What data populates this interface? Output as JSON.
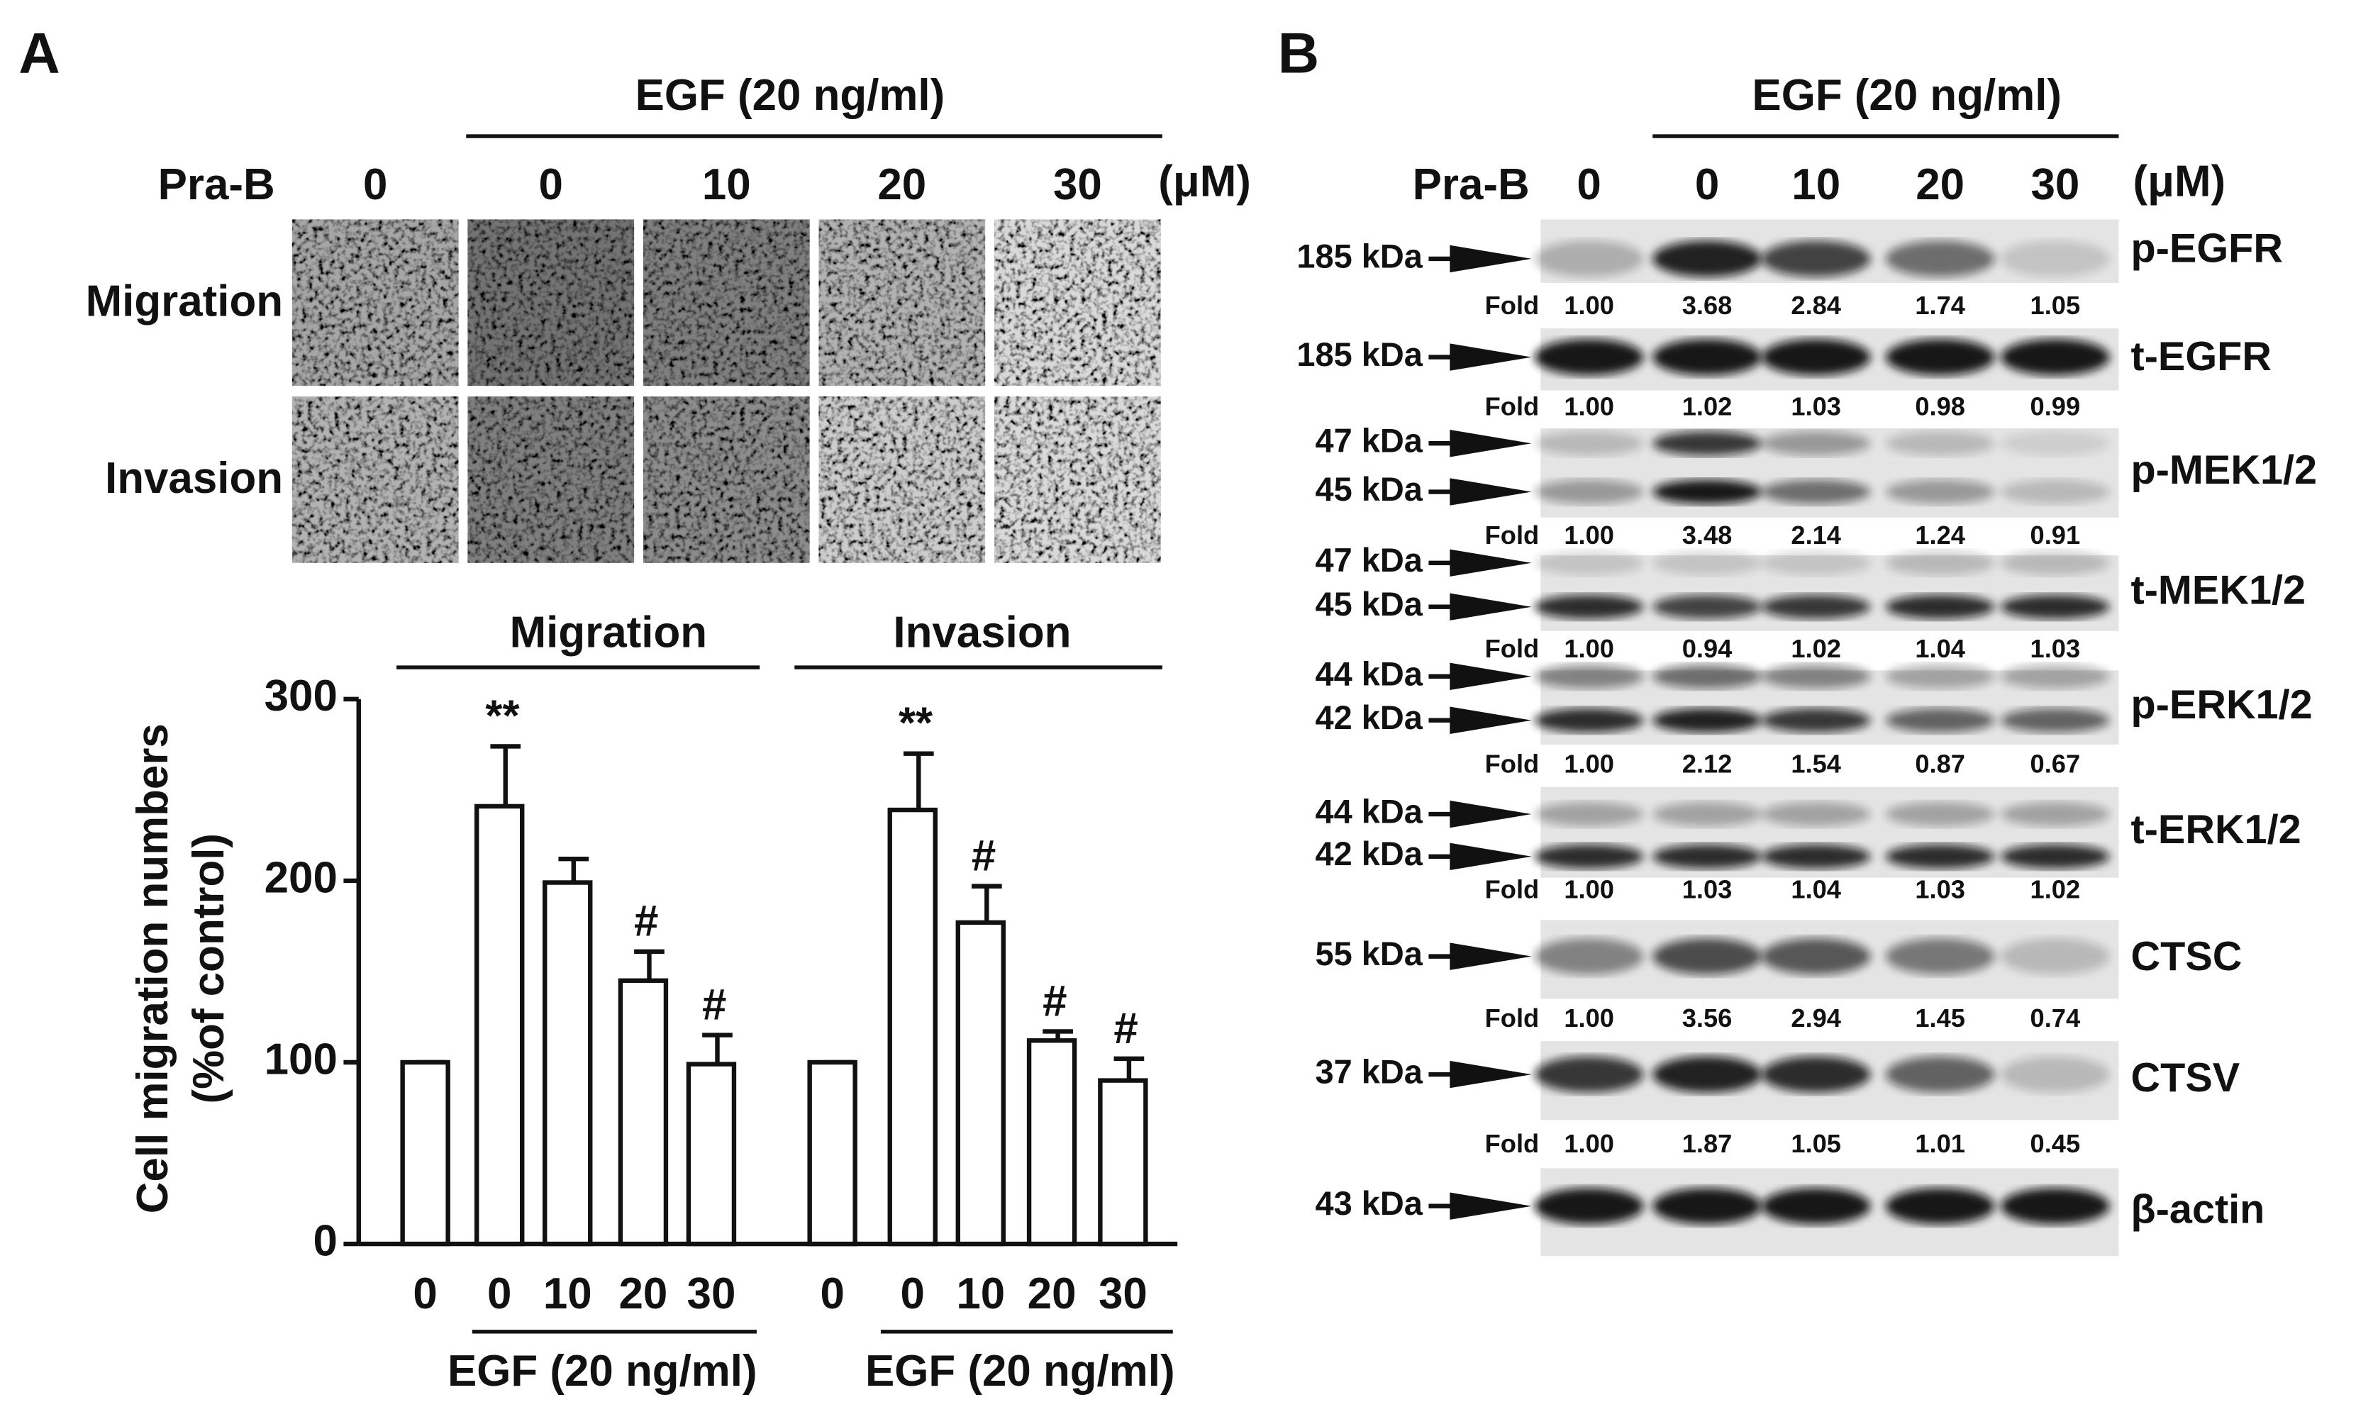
{
  "panel_a": {
    "label": "A",
    "egf": "EGF (20 ng/ml)",
    "prab": "Pra-B",
    "doses": [
      "0",
      "0",
      "10",
      "20",
      "30"
    ],
    "unit": "(μM)",
    "rows": [
      "Migration",
      "Invasion"
    ]
  },
  "chart_data": {
    "type": "bar",
    "y_label": [
      "Cell migration numbers",
      "(%of control)"
    ],
    "groups": [
      {
        "name": "Migration",
        "egf_label": "EGF (20 ng/ml)"
      },
      {
        "name": "Invasion",
        "egf_label": "EGF (20 ng/ml)"
      }
    ],
    "categories": [
      "0",
      "0",
      "10",
      "20",
      "30",
      "0",
      "0",
      "10",
      "20",
      "30"
    ],
    "values": [
      100,
      241,
      199,
      145,
      99,
      100,
      239,
      177,
      112,
      90
    ],
    "errors": [
      0,
      33,
      13,
      16,
      16,
      0,
      31,
      20,
      5,
      12
    ],
    "annotations": [
      null,
      "**",
      null,
      "#",
      "#",
      null,
      "**",
      "#",
      "#",
      "#"
    ],
    "color": "#ffffff",
    "ylim": [
      0,
      300
    ],
    "yticks": [
      0,
      100,
      200,
      300
    ]
  },
  "panel_b": {
    "label": "B",
    "egf": "EGF (20 ng/ml)",
    "prab": "Pra-B",
    "doses": [
      "0",
      "0",
      "10",
      "20",
      "30"
    ],
    "unit": "(μM)",
    "fold_label": "Fold",
    "blots": [
      {
        "name": "p-EGFR",
        "markers": [
          "185 kDa"
        ],
        "folds": [
          "1.00",
          "3.68",
          "2.84",
          "1.74",
          "1.05"
        ]
      },
      {
        "name": "t-EGFR",
        "markers": [
          "185 kDa"
        ],
        "folds": [
          "1.00",
          "1.02",
          "1.03",
          "0.98",
          "0.99"
        ]
      },
      {
        "name": "p-MEK1/2",
        "markers": [
          "47 kDa",
          "45 kDa"
        ],
        "folds": [
          "1.00",
          "3.48",
          "2.14",
          "1.24",
          "0.91"
        ]
      },
      {
        "name": "t-MEK1/2",
        "markers": [
          "47 kDa",
          "45 kDa"
        ],
        "folds": [
          "1.00",
          "0.94",
          "1.02",
          "1.04",
          "1.03"
        ]
      },
      {
        "name": "p-ERK1/2",
        "markers": [
          "44 kDa",
          "42 kDa"
        ],
        "folds": [
          "1.00",
          "2.12",
          "1.54",
          "0.87",
          "0.67"
        ]
      },
      {
        "name": "t-ERK1/2",
        "markers": [
          "44 kDa",
          "42 kDa"
        ],
        "folds": [
          "1.00",
          "1.03",
          "1.04",
          "1.03",
          "1.02"
        ]
      },
      {
        "name": "CTSC",
        "markers": [
          "55 kDa"
        ],
        "folds": [
          "1.00",
          "3.56",
          "2.94",
          "1.45",
          "0.74"
        ]
      },
      {
        "name": "CTSV",
        "markers": [
          "37 kDa"
        ],
        "folds": [
          "1.00",
          "1.87",
          "1.05",
          "1.01",
          "0.45"
        ]
      },
      {
        "name": "β-actin",
        "markers": [
          "43 kDa"
        ]
      }
    ]
  }
}
